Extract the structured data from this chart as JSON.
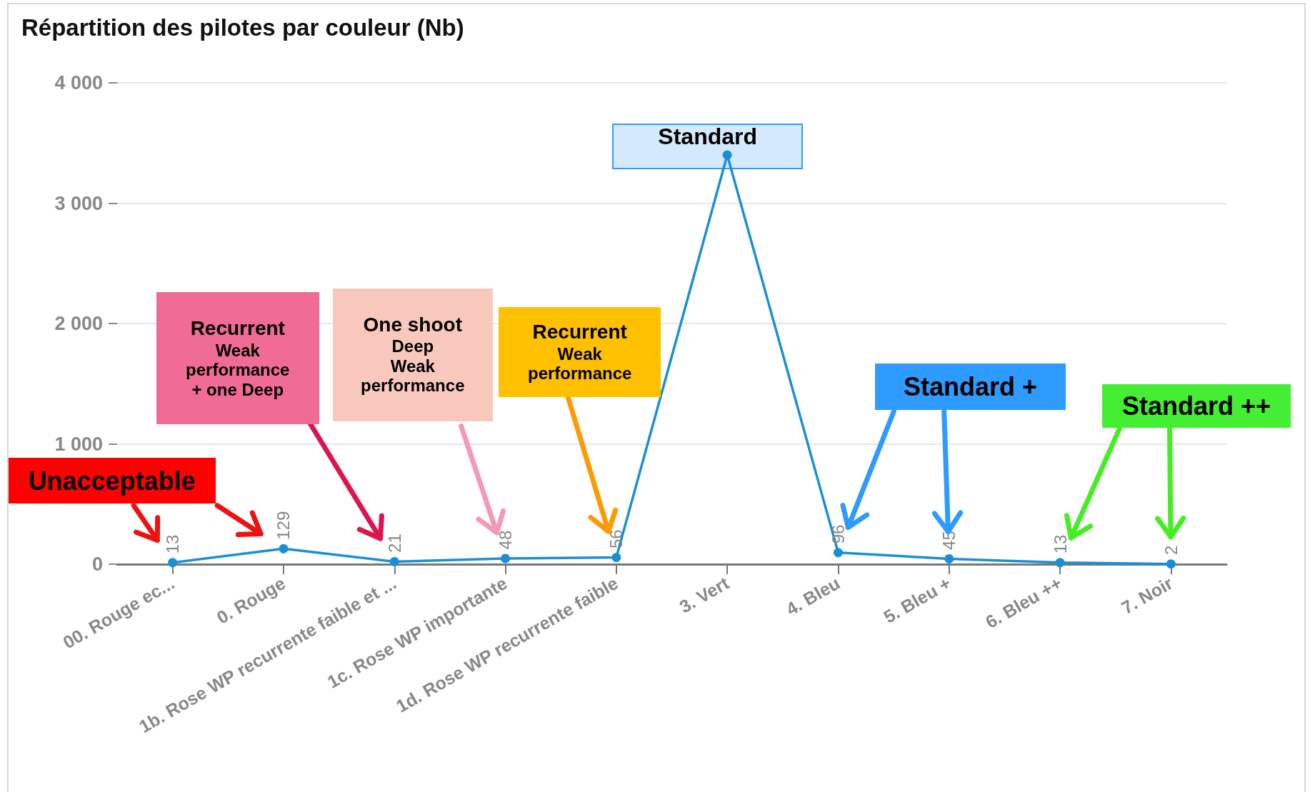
{
  "chart_data": {
    "type": "line",
    "title": "Répartition des pilotes par couleur (Nb)",
    "categories": [
      "00. Rouge ec...",
      "0. Rouge",
      "1b. Rose WP recurrente faible et ...",
      "1c. Rose WP importante",
      "1d. Rose WP recurrente faible",
      "3. Vert",
      "4. Bleu",
      "5. Bleu +",
      "6. Bleu ++",
      "7. Noir"
    ],
    "series": [
      {
        "color": "#1b8fd6",
        "values": [
          13,
          129,
          21,
          48,
          56,
          3400,
          96,
          45,
          13,
          2
        ],
        "value_labels": [
          "13",
          "129",
          "21",
          "48",
          "56",
          null,
          "96",
          "45",
          "13",
          "2"
        ]
      }
    ],
    "ylim": [
      0,
      4000
    ],
    "yticks": [
      {
        "value": 0,
        "label": "0"
      },
      {
        "value": 1000,
        "label": "1 000"
      },
      {
        "value": 2000,
        "label": "2 000"
      },
      {
        "value": 3000,
        "label": "3 000"
      },
      {
        "value": 4000,
        "label": "4 000"
      }
    ],
    "grid": "y",
    "marker": "circle",
    "line_style": "solid",
    "annotations": [
      "Unacceptable",
      "Recurrent\nWeak\nperformance\n+ one Deep",
      "One shoot\nDeep\nWeak\nperformance",
      "Recurrent\nWeak\nperformance",
      "Standard",
      "Standard +",
      "Standard ++"
    ]
  }
}
